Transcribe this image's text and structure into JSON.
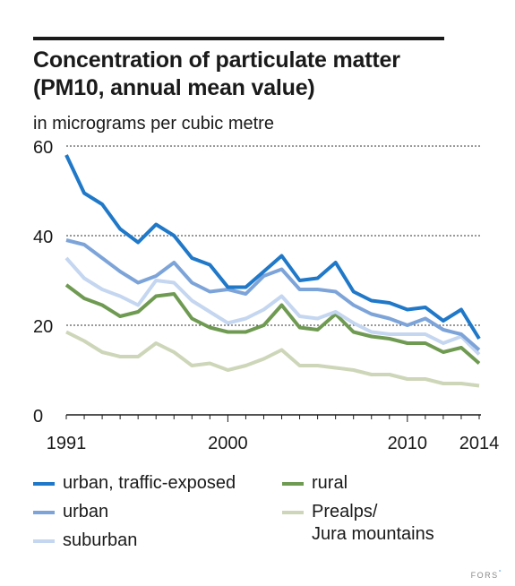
{
  "title": "Concentration of particulate matter\n(PM10, annual mean value)",
  "footer": {
    "text": "FORS",
    "mark": "°"
  },
  "colors": {
    "urban_traffic": "#1f78c8",
    "urban": "#7da4d9",
    "suburban": "#c4d6f0",
    "rural": "#6f9a52",
    "prealps": "#cdd6b8"
  },
  "chart_data": {
    "type": "line",
    "title": "Concentration of particulate matter (PM10, annual mean value)",
    "subtitle": "in micrograms per cubic metre",
    "ylabel": "in micrograms per cubic metre",
    "xlabel": "",
    "ylim": [
      0,
      60
    ],
    "xlim": [
      1991,
      2014
    ],
    "yticks": [
      0,
      20,
      40,
      60
    ],
    "ytick_labels": [
      "0",
      "20",
      "40",
      "60"
    ],
    "xtick_labels": [
      {
        "x": 1991,
        "label": "1991"
      },
      {
        "x": 2000,
        "label": "2000"
      },
      {
        "x": 2010,
        "label": "2010"
      },
      {
        "x": 2014,
        "label": "2014"
      }
    ],
    "grid": "horizontal dotted",
    "legend_position": "bottom",
    "x": [
      1991,
      1992,
      1993,
      1994,
      1995,
      1996,
      1997,
      1998,
      1999,
      2000,
      2001,
      2002,
      2003,
      2004,
      2005,
      2006,
      2007,
      2008,
      2009,
      2010,
      2011,
      2012,
      2013,
      2014
    ],
    "series": [
      {
        "name": "urban, traffic-exposed",
        "color": "#1f78c8",
        "values": [
          58,
          49.5,
          47,
          41.5,
          38.5,
          42.5,
          40,
          35,
          33.5,
          28.5,
          28.5,
          32,
          35.5,
          30,
          30.5,
          34,
          27.5,
          25.5,
          25,
          23.5,
          24,
          21,
          23.5,
          17
        ]
      },
      {
        "name": "urban",
        "color": "#7da4d9",
        "values": [
          39,
          38,
          35,
          32,
          29.5,
          31,
          34,
          29.5,
          27.5,
          28,
          27,
          31,
          32.5,
          28,
          28,
          27.5,
          24.5,
          22.5,
          21.5,
          20,
          21.5,
          19,
          18,
          14.5
        ]
      },
      {
        "name": "suburban",
        "color": "#c4d6f0",
        "values": [
          35,
          30.5,
          28,
          26.5,
          24.5,
          30,
          29.5,
          25.5,
          23,
          20.5,
          21.5,
          23.5,
          26.5,
          22,
          21.5,
          23,
          20.5,
          18.5,
          18,
          18,
          18,
          16,
          17.5,
          13.5
        ]
      },
      {
        "name": "rural",
        "color": "#6f9a52",
        "values": [
          29,
          26,
          24.5,
          22,
          23,
          26.5,
          27,
          21.5,
          19.5,
          18.5,
          18.5,
          20,
          24.5,
          19.5,
          19,
          22.5,
          18.5,
          17.5,
          17,
          16,
          16,
          14,
          15,
          11.5
        ]
      },
      {
        "name": "Prealps/\nJura mountains",
        "color": "#cdd6b8",
        "values": [
          18.5,
          16.5,
          14,
          13,
          13,
          16,
          14,
          11,
          11.5,
          10,
          11,
          12.5,
          14.5,
          11,
          11,
          10.5,
          10,
          9,
          9,
          8,
          8,
          7,
          7,
          6.5
        ]
      }
    ]
  },
  "legend": [
    {
      "label": "urban, traffic-exposed",
      "color": "#1f78c8"
    },
    {
      "label": "urban",
      "color": "#7da4d9"
    },
    {
      "label": "suburban",
      "color": "#c4d6f0"
    },
    {
      "label": "rural",
      "color": "#6f9a52"
    },
    {
      "label": "Prealps/\nJura mountains",
      "color": "#cdd6b8"
    }
  ]
}
